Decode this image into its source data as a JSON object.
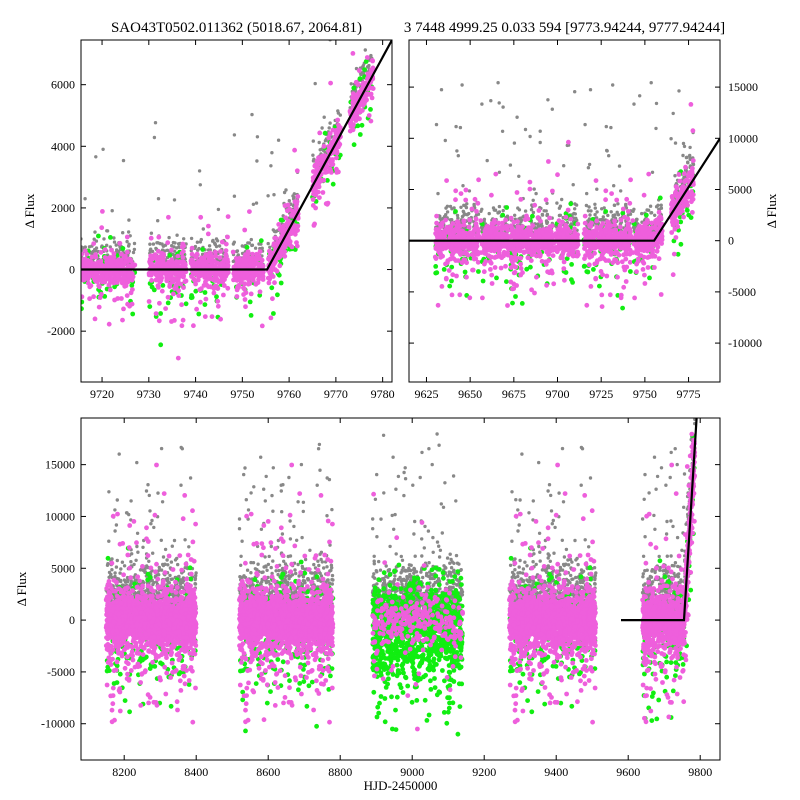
{
  "chart_data": [
    {
      "id": "top-left",
      "type": "scatter",
      "title": "SAO43T0502.011362 (5018.67, 2064.81)",
      "xlabel": "",
      "ylabel": "Δ Flux",
      "xlim": [
        9715.5,
        9782.0
      ],
      "ylim": [
        -3650,
        7450
      ],
      "xticks": [
        9720,
        9730,
        9740,
        9750,
        9760,
        9770,
        9780
      ],
      "yticks": [
        -2000,
        0,
        2000,
        4000,
        6000
      ],
      "yaxis_side": "left",
      "colors": {
        "gray": "#888888",
        "pink": "#ee5fdc",
        "green": "#11ee11",
        "fit": "#000000"
      },
      "segments": [
        {
          "x": [
            9715.5,
            9727.0
          ]
        },
        {
          "x": [
            9730.0,
            9738.0
          ]
        },
        {
          "x": [
            9739.0,
            9747.0
          ]
        },
        {
          "x": [
            9748.0,
            9754.5
          ]
        },
        {
          "x": [
            9755.5,
            9762.0
          ]
        },
        {
          "x": [
            9765.0,
            9771.0
          ]
        },
        {
          "x": [
            9773.0,
            9778.0
          ]
        }
      ],
      "fit_line": {
        "x": [
          9715.5,
          9755.3,
          9782.0
        ],
        "y": [
          0,
          0,
          7450
        ]
      }
    },
    {
      "id": "top-right",
      "type": "scatter",
      "title": "3 7448 4999.25 0.033 594 [9773.94244, 9777.94244]",
      "xlabel": "",
      "ylabel": "Δ Flux",
      "xlim": [
        9615,
        9793
      ],
      "ylim": [
        -13800,
        19600
      ],
      "xticks": [
        9625,
        9650,
        9675,
        9700,
        9725,
        9750,
        9775
      ],
      "yticks": [
        -10000,
        -5000,
        0,
        5000,
        10000,
        15000
      ],
      "yaxis_side": "right",
      "colors": {
        "gray": "#888888",
        "pink": "#ee5fdc",
        "green": "#11ee11",
        "fit": "#000000"
      },
      "segments": [
        {
          "x": [
            9630,
            9655
          ]
        },
        {
          "x": [
            9656,
            9672
          ]
        },
        {
          "x": [
            9673,
            9698
          ]
        },
        {
          "x": [
            9699,
            9712
          ]
        },
        {
          "x": [
            9715,
            9742
          ]
        },
        {
          "x": [
            9743,
            9760
          ]
        },
        {
          "x": [
            9765,
            9778
          ]
        }
      ],
      "fit_line": {
        "x": [
          9615,
          9755.3,
          9793
        ],
        "y": [
          0,
          0,
          10000
        ]
      }
    },
    {
      "id": "bottom",
      "type": "scatter",
      "title": "",
      "xlabel": "HJD-2450000",
      "ylabel": "Δ Flux",
      "xlim": [
        8080,
        9855
      ],
      "ylim": [
        -13500,
        19500
      ],
      "xticks": [
        8200,
        8400,
        8600,
        8800,
        9000,
        9200,
        9400,
        9600,
        9800
      ],
      "yticks": [
        -10000,
        -5000,
        0,
        5000,
        10000,
        15000
      ],
      "yaxis_side": "left",
      "colors": {
        "gray": "#888888",
        "pink": "#ee5fdc",
        "green": "#11ee11",
        "fit": "#000000"
      },
      "segments": [
        {
          "x": [
            8150,
            8400
          ]
        },
        {
          "x": [
            8520,
            8780
          ]
        },
        {
          "x": [
            8890,
            9140
          ],
          "dominant": "green"
        },
        {
          "x": [
            9270,
            9510
          ]
        },
        {
          "x": [
            9640,
            9785
          ]
        }
      ],
      "fit_line": {
        "x": [
          9580,
          9755,
          9790
        ],
        "y": [
          0,
          0,
          19500
        ]
      }
    }
  ]
}
